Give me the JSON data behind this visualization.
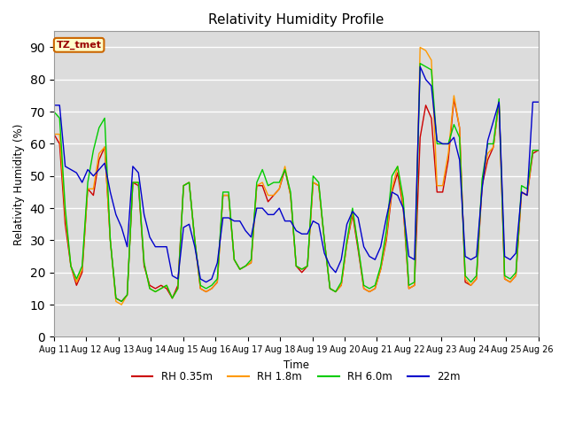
{
  "title": "Relativity Humidity Profile",
  "ylabel": "Relativity Humidity (%)",
  "xlabel": "Time",
  "ylim": [
    0,
    95
  ],
  "yticks": [
    0,
    10,
    20,
    30,
    40,
    50,
    60,
    70,
    80,
    90
  ],
  "x_labels": [
    "Aug 11",
    "Aug 12",
    "Aug 13",
    "Aug 14",
    "Aug 15",
    "Aug 16",
    "Aug 17",
    "Aug 18",
    "Aug 19",
    "Aug 20",
    "Aug 21",
    "Aug 22",
    "Aug 23",
    "Aug 24",
    "Aug 25",
    "Aug 26"
  ],
  "colors": {
    "rh035": "#cc0000",
    "rh18": "#ff9900",
    "rh60": "#00cc00",
    "m22": "#0000cc"
  },
  "bg_color": "#dcdcdc",
  "legend_label": "TZ_tmet",
  "rh035": [
    63,
    60,
    35,
    22,
    16,
    20,
    46,
    44,
    55,
    59,
    30,
    12,
    11,
    13,
    48,
    47,
    22,
    16,
    15,
    16,
    15,
    12,
    16,
    47,
    48,
    30,
    15,
    14,
    15,
    17,
    44,
    44,
    24,
    21,
    22,
    23,
    47,
    47,
    42,
    44,
    46,
    52,
    44,
    22,
    20,
    22,
    48,
    47,
    30,
    15,
    14,
    16,
    29,
    38,
    27,
    15,
    14,
    15,
    21,
    30,
    45,
    51,
    40,
    15,
    16,
    62,
    72,
    68,
    45,
    45,
    55,
    74,
    65,
    17,
    16,
    18,
    47,
    55,
    59,
    73,
    18,
    17,
    19,
    45,
    44,
    57,
    58
  ],
  "rh18": [
    63,
    63,
    38,
    22,
    17,
    21,
    46,
    46,
    57,
    59,
    30,
    11,
    10,
    13,
    48,
    48,
    23,
    15,
    14,
    15,
    16,
    12,
    15,
    47,
    48,
    30,
    15,
    14,
    15,
    17,
    44,
    44,
    24,
    21,
    22,
    23,
    47,
    48,
    44,
    44,
    46,
    53,
    44,
    22,
    21,
    22,
    48,
    47,
    30,
    15,
    14,
    16,
    29,
    39,
    28,
    15,
    14,
    15,
    21,
    31,
    46,
    53,
    41,
    15,
    16,
    90,
    89,
    86,
    47,
    47,
    57,
    75,
    65,
    18,
    16,
    18,
    48,
    57,
    59,
    73,
    18,
    17,
    19,
    45,
    44,
    58,
    58
  ],
  "rh60": [
    70,
    68,
    40,
    22,
    18,
    22,
    48,
    58,
    65,
    68,
    30,
    12,
    11,
    13,
    48,
    48,
    23,
    15,
    14,
    15,
    16,
    12,
    15,
    47,
    48,
    30,
    16,
    15,
    16,
    18,
    45,
    45,
    24,
    21,
    22,
    24,
    48,
    52,
    47,
    48,
    48,
    52,
    45,
    22,
    21,
    22,
    50,
    48,
    30,
    15,
    14,
    17,
    30,
    40,
    28,
    16,
    15,
    16,
    22,
    33,
    50,
    53,
    43,
    16,
    17,
    85,
    84,
    83,
    60,
    60,
    60,
    66,
    62,
    19,
    17,
    19,
    49,
    60,
    60,
    74,
    19,
    18,
    20,
    47,
    46,
    58,
    58
  ],
  "m22": [
    72,
    72,
    53,
    52,
    51,
    48,
    52,
    50,
    52,
    54,
    45,
    38,
    34,
    28,
    53,
    51,
    38,
    31,
    28,
    28,
    28,
    19,
    18,
    34,
    35,
    28,
    18,
    17,
    18,
    23,
    37,
    37,
    36,
    36,
    33,
    31,
    40,
    40,
    38,
    38,
    40,
    36,
    36,
    33,
    32,
    32,
    36,
    35,
    26,
    22,
    20,
    24,
    35,
    39,
    37,
    28,
    25,
    24,
    28,
    37,
    45,
    44,
    40,
    25,
    24,
    84,
    80,
    78,
    61,
    60,
    60,
    62,
    55,
    25,
    24,
    25,
    46,
    61,
    67,
    73,
    25,
    24,
    26,
    45,
    44,
    73,
    73
  ]
}
